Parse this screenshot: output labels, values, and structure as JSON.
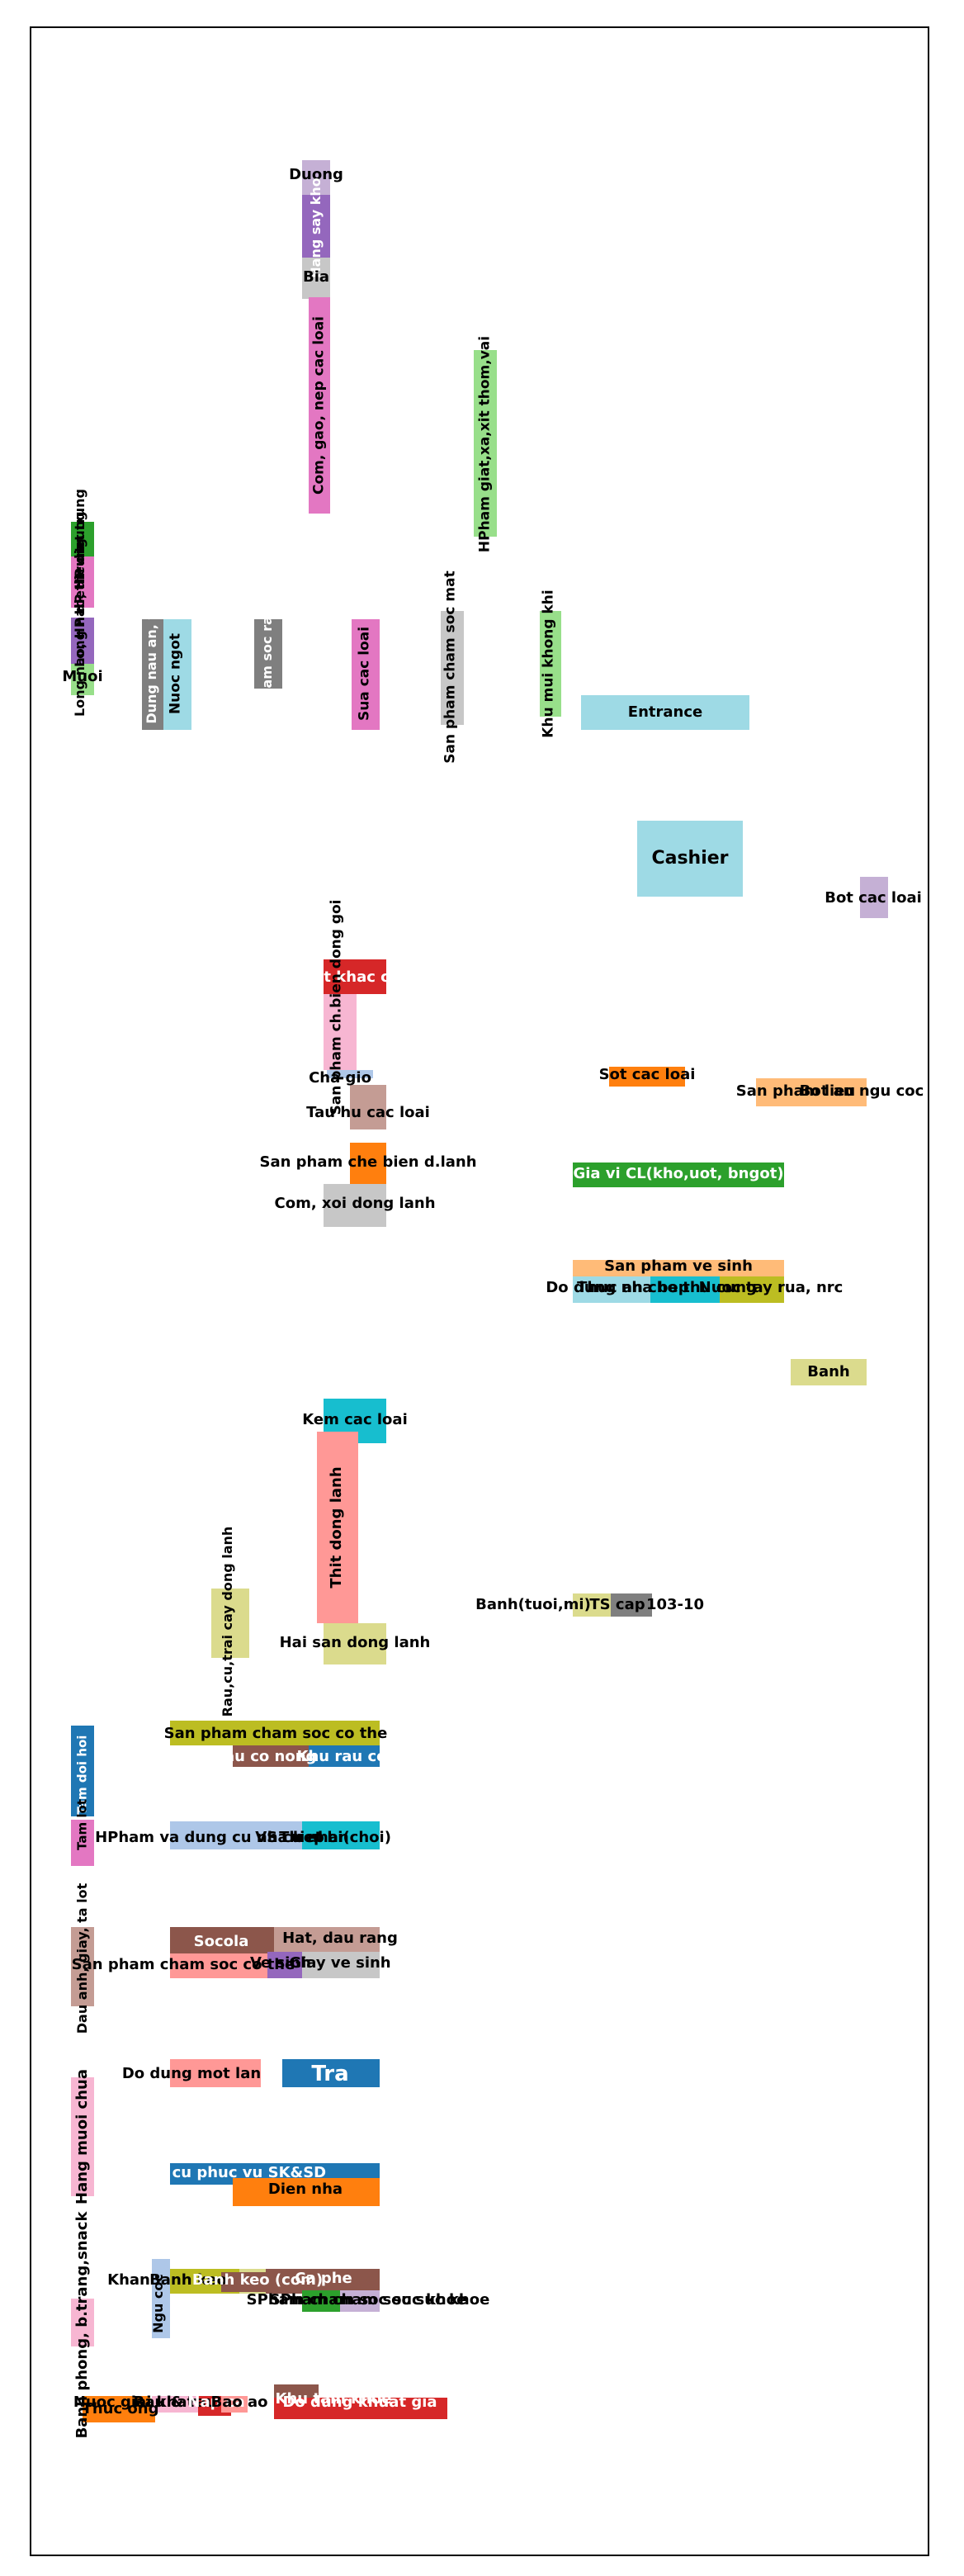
{
  "zones": [
    {
      "label": "Duong",
      "color": "#c5b0d5"
    },
    {
      "label": "Hang say kho",
      "color": "#9467bd",
      "text_color": "#ffffff"
    },
    {
      "label": "Bia",
      "color": "#c7c7c7"
    },
    {
      "label": "Com, gao, nep cac loai",
      "color": "#e377c2"
    },
    {
      "label": "HPham giat,xa,xit thom,vai",
      "color": "#98df8a"
    },
    {
      "label": "HP dieu trung",
      "color": "#2ca02c"
    },
    {
      "label": "Long nao, HP diet trung",
      "color": "#e377c2"
    },
    {
      "label": "Long nao, HP diet trung",
      "color": "#9467bd"
    },
    {
      "label": "Muoi",
      "color": "#98df8a"
    },
    {
      "label": "Dung nau an, v.",
      "color": "#7f7f7f",
      "text_color": "#ffffff"
    },
    {
      "label": "Nuoc ngot",
      "color": "#9edae5"
    },
    {
      "label": "Cham soc rang",
      "color": "#7f7f7f",
      "text_color": "#ffffff"
    },
    {
      "label": "Sua cac loai",
      "color": "#e377c2"
    },
    {
      "label": "San pham cham soc mat",
      "color": "#c7c7c7"
    },
    {
      "label": "Khu mui khong khi",
      "color": "#98df8a"
    },
    {
      "label": "Entrance",
      "color": "#9edae5"
    },
    {
      "label": "Cashier",
      "color": "#9edae5"
    },
    {
      "label": "Bot cac loai",
      "color": "#c5b0d5"
    },
    {
      "label": "Dat khac cac",
      "color": "#d62728",
      "text_color": "#ffffff"
    },
    {
      "label": "San pham ch.bien dong goi",
      "color": "#f7b6d2"
    },
    {
      "label": "Cha gio",
      "color": "#aec7e8"
    },
    {
      "label": "Tau hu cac loai",
      "color": "#c49c94"
    },
    {
      "label": "San pham che bien d.lanh",
      "color": "#ff7f0e"
    },
    {
      "label": "Com, xoi dong lanh",
      "color": "#c7c7c7"
    },
    {
      "label": "Sot cac loai",
      "color": "#ff7f0e"
    },
    {
      "label": "San pham lieu",
      "color": "#ffbb78"
    },
    {
      "label": "Bot an ngu coc",
      "color": "#ffbb78"
    },
    {
      "label": "Gia vi CL(kho,uot, bngot)",
      "color": "#2ca02c",
      "text_color": "#ffffff"
    },
    {
      "label": "San pham ve sinh",
      "color": "#ffbb78"
    },
    {
      "label": "Do dung nha bep",
      "color": "#9edae5"
    },
    {
      "label": "Thuc an cho thu cung",
      "color": "#17becf"
    },
    {
      "label": "Nuoc tay rua, nrc",
      "color": "#bcbd22"
    },
    {
      "label": "Banh",
      "color": "#dbdb8d"
    },
    {
      "label": "Kem cac loai",
      "color": "#17becf"
    },
    {
      "label": "Thit dong lanh",
      "color": "#ff9896"
    },
    {
      "label": "Hai san dong lanh",
      "color": "#dbdb8d"
    },
    {
      "label": "Rau,cu,trai cay dong lanh",
      "color": "#dbdb8d"
    },
    {
      "label": "Banh(tuoi,mi)",
      "color": "#dbdb8d"
    },
    {
      "label": "TS cap",
      "color": "#c7c7c7"
    },
    {
      "label": "103-10",
      "color": "#7f7f7f"
    },
    {
      "label": "San pham cham soc co the",
      "color": "#bcbd22"
    },
    {
      "label": "Lau co nong",
      "color": "#8c564b",
      "text_color": "#ffffff"
    },
    {
      "label": "Khu rau co",
      "color": "#1f77b4",
      "text_color": "#ffffff"
    },
    {
      "label": "Tam doi hoi",
      "color": "#1f77b4",
      "text_color": "#ffffff"
    },
    {
      "label": "Tam lot",
      "color": "#e377c2"
    },
    {
      "label": "HPham va dung cu nha bep",
      "color": "#aec7e8"
    },
    {
      "label": "VS cu nhan",
      "color": "#aec7e8"
    },
    {
      "label": "Thiet bi(choi)",
      "color": "#17becf"
    },
    {
      "label": "Dau anh, giay, ta lot",
      "color": "#c49c94"
    },
    {
      "label": "Socola",
      "color": "#8c564b",
      "text_color": "#ffffff"
    },
    {
      "label": "Hat, dau rang",
      "color": "#c49c94"
    },
    {
      "label": "San pham cham soc co the",
      "color": "#ff9896"
    },
    {
      "label": "Ve sinh",
      "color": "#9467bd"
    },
    {
      "label": "Giay ve sinh",
      "color": "#c7c7c7"
    },
    {
      "label": "Do dung mot lan",
      "color": "#ff9896"
    },
    {
      "label": "Tra",
      "color": "#1f77b4",
      "text_color": "#ffffff"
    },
    {
      "label": "Hang muoi chua",
      "color": "#f7b6d2"
    },
    {
      "label": "Dung cu phuc vu SK&SD",
      "color": "#1f77b4",
      "text_color": "#ffffff"
    },
    {
      "label": "Dien nha",
      "color": "#ff7f0e"
    },
    {
      "label": "Banh phong, b.trang,snack",
      "color": "#f7b6d2"
    },
    {
      "label": "Ngu coc",
      "color": "#aec7e8"
    },
    {
      "label": "Khan",
      "color": "#dbdb8d"
    },
    {
      "label": "Banh keo",
      "color": "#bcbd22"
    },
    {
      "label": "Ca phe",
      "color": "#8c564b",
      "text_color": "#ffffff"
    },
    {
      "label": "Banh keo (com)",
      "color": "#8c564b",
      "text_color": "#ffffff"
    },
    {
      "label": "SPham cham soc suc khoe",
      "color": "#2ca02c"
    },
    {
      "label": "SPham cham soc suc khoe",
      "color": "#c5b0d5"
    },
    {
      "label": "Nuoc giai khat",
      "color": "#ff7f0e"
    },
    {
      "label": "Thuc ong",
      "color": "#ff7f0e"
    },
    {
      "label": "Rau & rau",
      "color": "#f7b6d2"
    },
    {
      "label": "Nap ca",
      "color": "#d62728",
      "text_color": "#ffffff"
    },
    {
      "label": "Bao ao",
      "color": "#ff9896"
    },
    {
      "label": "Khu tam khoe",
      "color": "#8c564b",
      "text_color": "#ffffff"
    },
    {
      "label": "Do dung khuat gia",
      "color": "#d62728",
      "text_color": "#ffffff"
    }
  ]
}
